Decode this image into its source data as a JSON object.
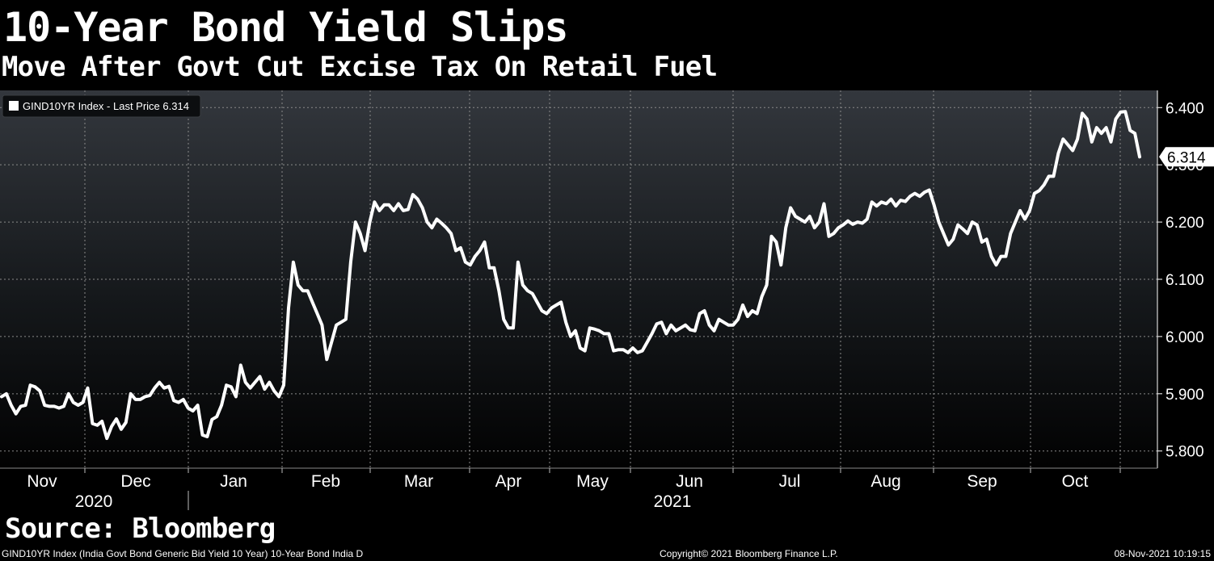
{
  "title": "10-Year Bond Yield Slips",
  "subtitle": "Move After Govt Cut Excise Tax On Retail Fuel",
  "source": "Source: Bloomberg",
  "footer": {
    "left": "GIND10YR Index (India Govt Bond Generic Bid Yield 10 Year) 10-Year Bond India  D",
    "center": "Copyright© 2021 Bloomberg Finance L.P.",
    "right": "08-Nov-2021 10:19:15"
  },
  "colors": {
    "background": "#000000",
    "line": "#ffffff",
    "grid": "#8a8a8a"
  },
  "chart_data": {
    "type": "line",
    "legend": "GIND10YR Index - Last Price 6.314",
    "legend_position": "top-left",
    "last_price_label": "6.314",
    "grid": true,
    "ylim": [
      5.77,
      6.43
    ],
    "yticks": [
      "6.400",
      "6.300",
      "6.200",
      "6.100",
      "6.000",
      "5.900",
      "5.800"
    ],
    "ytick_values": [
      6.4,
      6.3,
      6.2,
      6.1,
      6.0,
      5.9,
      5.8
    ],
    "month_labels": [
      "Nov",
      "Dec",
      "Jan",
      "Feb",
      "Mar",
      "Apr",
      "May",
      "Jun",
      "Jul",
      "Aug",
      "Sep",
      "Oct"
    ],
    "year_labels": [
      "2020",
      "2021"
    ],
    "series": [
      {
        "values": [
          5.895,
          5.9,
          5.88,
          5.865,
          5.878,
          5.88,
          5.915,
          5.912,
          5.905,
          5.88,
          5.878,
          5.878,
          5.875,
          5.878,
          5.9,
          5.885,
          5.88,
          5.885,
          5.91,
          5.848,
          5.845,
          5.852,
          5.822,
          5.843,
          5.856,
          5.838,
          5.85,
          5.9,
          5.89,
          5.89,
          5.895,
          5.897,
          5.91,
          5.92,
          5.91,
          5.913,
          5.888,
          5.885,
          5.89,
          5.875,
          5.87,
          5.88,
          5.828,
          5.825,
          5.855,
          5.86,
          5.88,
          5.915,
          5.912,
          5.895,
          5.95,
          5.92,
          5.91,
          5.92,
          5.93,
          5.908,
          5.92,
          5.905,
          5.895,
          5.915,
          6.05,
          6.13,
          6.09,
          6.08,
          6.08,
          6.06,
          6.04,
          6.02,
          5.96,
          5.99,
          6.02,
          6.025,
          6.03,
          6.13,
          6.2,
          6.18,
          6.15,
          6.2,
          6.235,
          6.22,
          6.23,
          6.23,
          6.22,
          6.232,
          6.22,
          6.222,
          6.248,
          6.24,
          6.225,
          6.2,
          6.19,
          6.205,
          6.198,
          6.19,
          6.18,
          6.15,
          6.155,
          6.13,
          6.125,
          6.14,
          6.15,
          6.165,
          6.12,
          6.12,
          6.08,
          6.03,
          6.015,
          6.015,
          6.13,
          6.09,
          6.08,
          6.075,
          6.06,
          6.045,
          6.04,
          6.05,
          6.055,
          6.06,
          6.025,
          6.0,
          6.01,
          5.98,
          5.975,
          6.015,
          6.013,
          6.01,
          6.005,
          6.005,
          5.975,
          5.977,
          5.977,
          5.972,
          5.98,
          5.972,
          5.975,
          5.99,
          6.005,
          6.022,
          6.025,
          6.005,
          6.02,
          6.01,
          6.015,
          6.02,
          6.012,
          6.01,
          6.04,
          6.045,
          6.02,
          6.01,
          6.03,
          6.025,
          6.02,
          6.02,
          6.03,
          6.055,
          6.035,
          6.045,
          6.04,
          6.07,
          6.09,
          6.175,
          6.165,
          6.125,
          6.19,
          6.225,
          6.21,
          6.205,
          6.2,
          6.21,
          6.19,
          6.2,
          6.232,
          6.175,
          6.18,
          6.19,
          6.195,
          6.202,
          6.196,
          6.2,
          6.198,
          6.205,
          6.235,
          6.228,
          6.235,
          6.232,
          6.24,
          6.228,
          6.238,
          6.236,
          6.245,
          6.25,
          6.245,
          6.252,
          6.256,
          6.23,
          6.2,
          6.18,
          6.16,
          6.17,
          6.195,
          6.188,
          6.18,
          6.2,
          6.195,
          6.165,
          6.17,
          6.14,
          6.125,
          6.14,
          6.14,
          6.18,
          6.2,
          6.22,
          6.205,
          6.22,
          6.25,
          6.255,
          6.265,
          6.28,
          6.28,
          6.32,
          6.345,
          6.335,
          6.325,
          6.345,
          6.39,
          6.38,
          6.34,
          6.365,
          6.355,
          6.365,
          6.34,
          6.38,
          6.392,
          6.393,
          6.36,
          6.355,
          6.314
        ]
      }
    ]
  }
}
